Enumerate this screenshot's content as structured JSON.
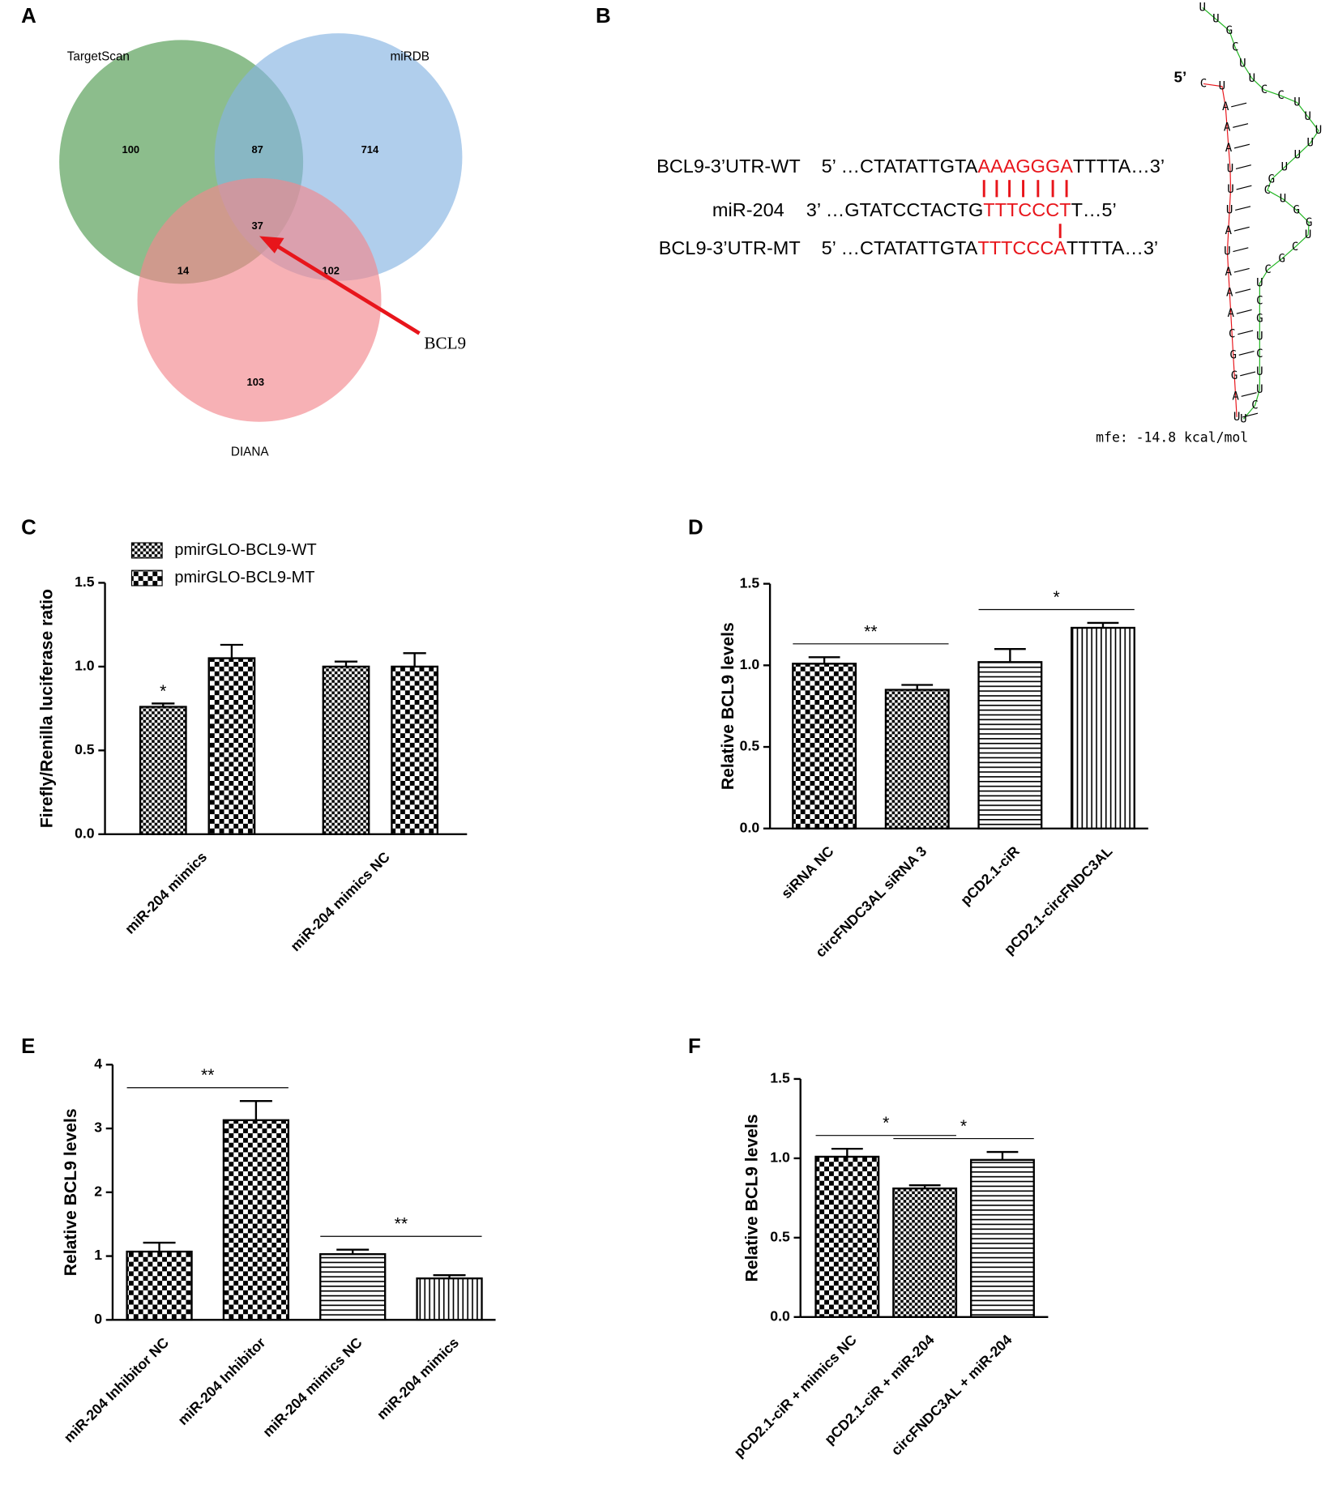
{
  "chart_data": [
    {
      "panel": "A",
      "type": "venn",
      "sets": [
        {
          "name": "TargetScan",
          "color": "#4f9a4f"
        },
        {
          "name": "miRDB",
          "color": "#86b4e2"
        },
        {
          "name": "DIANA",
          "color": "#f3878d"
        }
      ],
      "regions": [
        100,
        87,
        714,
        37,
        14,
        102,
        103
      ],
      "annotation": "BCL9",
      "arrow_color": "#e8151b"
    },
    {
      "panel": "B",
      "type": "alignment",
      "highlight_color": "#e8151b",
      "rows": [
        {
          "label": "BCL9-3’UTR-WT",
          "parts": [
            "5’ …CTATATTGTA",
            "AAAGGGA",
            "TTTTA…3’"
          ]
        },
        {
          "label": "miR-204",
          "parts": [
            "3’ …GTATCCTACTG",
            "TTTCCCT",
            "T…5’"
          ]
        },
        {
          "label": "BCL9-3’UTR-MT",
          "parts": [
            "5’ …CTATATTGTA",
            "TTTCCCA",
            "TTTTA…3’"
          ]
        }
      ],
      "structure": {
        "end_label": "5’",
        "red_strand": "CUAAAUUUAUAAACGGAU",
        "red_color": "#e8151b",
        "green_strand": "UCUUCUGCUCGCUGGUCGUUUUUUCCUUCGUU",
        "green_color": "#22b522",
        "mfe": "mfe: -14.8 kcal/mol"
      }
    },
    {
      "panel": "C",
      "type": "bar",
      "y_label": "Firefly/Renilla luciferase ratio",
      "categories": [
        "miR-204 mimics",
        "miR-204 mimics NC"
      ],
      "series": [
        {
          "name": "pmirGLO-BCL9-WT",
          "pattern": "checker-fine",
          "values": [
            0.76,
            1.0
          ],
          "errors": [
            0.02,
            0.03
          ]
        },
        {
          "name": "pmirGLO-BCL9-MT",
          "pattern": "checker",
          "values": [
            1.05,
            1.0
          ],
          "errors": [
            0.08,
            0.08
          ]
        }
      ],
      "ylim": [
        0,
        1.5
      ],
      "yticks": [
        {
          "value": 0,
          "label": "0.0"
        },
        0.5,
        {
          "value": 1,
          "label": "1.0"
        },
        1.5
      ],
      "annotations": [
        {
          "text": "*",
          "series": 0,
          "category": 0
        }
      ]
    },
    {
      "panel": "D",
      "type": "bar",
      "y_label": "Relative BCL9 levels",
      "categories": [
        "siRNA NC",
        "circFNDC3AL siRNA 3",
        "pCD2.1-ciR",
        "pCD2.1-circFNDC3AL"
      ],
      "values": [
        1.01,
        0.85,
        1.02,
        1.23
      ],
      "errors": [
        0.04,
        0.03,
        0.08,
        0.03
      ],
      "patterns": [
        "checker",
        "checker-fine",
        "hstripe",
        "vstripe"
      ],
      "ylim": [
        0,
        1.5
      ],
      "yticks": [
        {
          "value": 0,
          "label": "0.0"
        },
        0.5,
        {
          "value": 1,
          "label": "1.0"
        },
        1.5
      ],
      "brackets": [
        {
          "text": "**",
          "from": 0,
          "to": 1
        },
        {
          "text": "*",
          "from": 2,
          "to": 3
        }
      ]
    },
    {
      "panel": "E",
      "type": "bar",
      "y_label": "Relative BCL9 levels",
      "categories": [
        "miR-204 Inhibitor NC",
        "miR-204 Inhibitor",
        "miR-204 mimics NC",
        "miR-204 mimics"
      ],
      "values": [
        1.07,
        3.13,
        1.03,
        0.65
      ],
      "errors": [
        0.14,
        0.3,
        0.07,
        0.05
      ],
      "patterns": [
        "checker",
        "checker",
        "hstripe",
        "vstripe"
      ],
      "ylim": [
        0,
        4
      ],
      "yticks": [
        0,
        1,
        2,
        3,
        4
      ],
      "brackets": [
        {
          "text": "**",
          "from": 0,
          "to": 1
        },
        {
          "text": "**",
          "from": 2,
          "to": 3
        }
      ]
    },
    {
      "panel": "F",
      "type": "bar",
      "y_label": "Relative BCL9 levels",
      "categories": [
        "pCD2.1-ciR + mimics NC",
        "pCD2.1-ciR + miR-204",
        "circFNDC3AL + miR-204"
      ],
      "values": [
        1.01,
        0.81,
        0.99
      ],
      "errors": [
        0.05,
        0.02,
        0.05
      ],
      "patterns": [
        "checker",
        "checker-fine",
        "hstripe"
      ],
      "ylim": [
        0,
        1.5
      ],
      "yticks": [
        {
          "value": 0,
          "label": "0.0"
        },
        0.5,
        {
          "value": 1,
          "label": "1.0"
        },
        1.5
      ],
      "brackets": [
        {
          "text": "*",
          "from": 0,
          "to": 1
        },
        {
          "text": "*",
          "from": 1,
          "to": 2
        }
      ]
    }
  ]
}
